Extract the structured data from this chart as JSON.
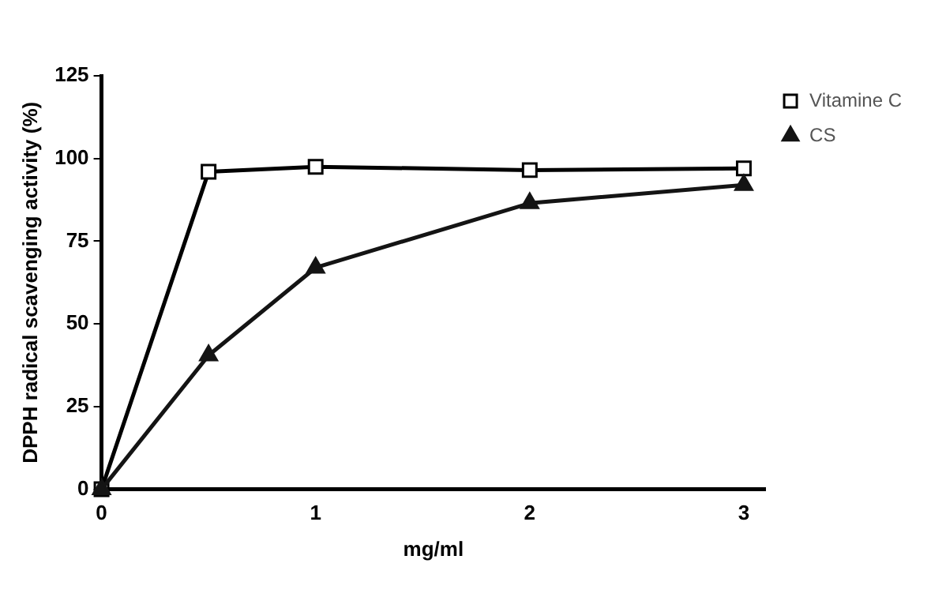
{
  "chart_data": {
    "type": "line",
    "xlabel": "mg/ml",
    "ylabel": "DPPH radical scavenging activity (%)",
    "x": [
      0,
      0.5,
      1,
      2,
      3
    ],
    "series": [
      {
        "name": "Vitamine C",
        "color": "#000000",
        "marker": "square",
        "values": [
          0,
          96,
          97.5,
          96.5,
          97
        ]
      },
      {
        "name": "CS",
        "color": "#141414",
        "marker": "triangle",
        "values": [
          0,
          40.5,
          67,
          86.5,
          92
        ]
      }
    ],
    "xlim": [
      0,
      3.1
    ],
    "xticks": [
      0,
      1,
      2,
      3
    ],
    "ylim": [
      0,
      125
    ],
    "yticks": [
      0,
      25,
      50,
      75,
      100,
      125
    ],
    "grid": false,
    "legend": "right",
    "line_style": "solid"
  }
}
